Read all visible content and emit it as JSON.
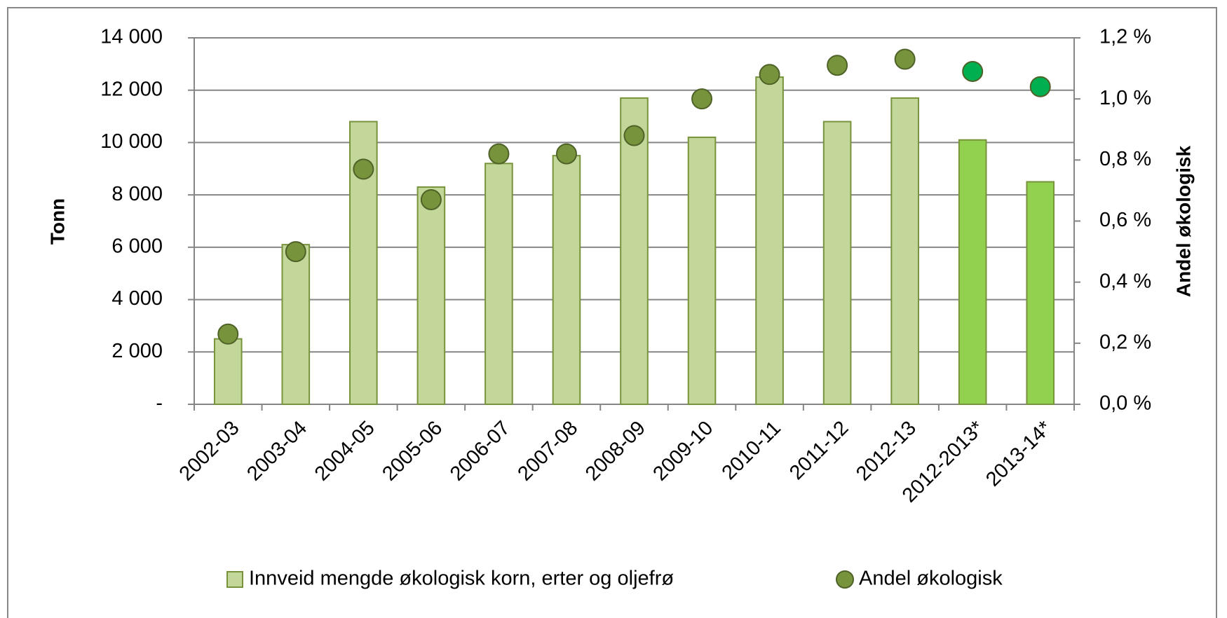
{
  "chart_data": {
    "type": "bar",
    "categories": [
      "2002-03",
      "2003-04",
      "2004-05",
      "2005-06",
      "2006-07",
      "2007-08",
      "2008-09",
      "2009-10",
      "2010-11",
      "2011-12",
      "2012-13",
      "2012-2013*",
      "2013-14*"
    ],
    "series": [
      {
        "name": "Innveid mengde økologisk korn, erter og oljefrø",
        "type": "bar",
        "color": "#c4d79b",
        "edge_color": "#77933c",
        "colors": [
          "#c4d79b",
          "#c4d79b",
          "#c4d79b",
          "#c4d79b",
          "#c4d79b",
          "#c4d79b",
          "#c4d79b",
          "#c4d79b",
          "#c4d79b",
          "#c4d79b",
          "#c4d79b",
          "#92d050",
          "#92d050"
        ],
        "values": [
          2500,
          6100,
          10800,
          8300,
          9200,
          9500,
          11700,
          10200,
          12500,
          10800,
          11700,
          10100,
          8500
        ]
      },
      {
        "name": "Andel økologisk",
        "type": "scatter",
        "axis": "y2",
        "color": "#77933c",
        "edge_color": "#4f6228",
        "colors": [
          "#77933c",
          "#77933c",
          "#77933c",
          "#77933c",
          "#77933c",
          "#77933c",
          "#77933c",
          "#77933c",
          "#77933c",
          "#77933c",
          "#77933c",
          "#00b050",
          "#00b050"
        ],
        "values": [
          0.23,
          0.5,
          0.77,
          0.67,
          0.82,
          0.82,
          0.88,
          1.0,
          1.08,
          1.11,
          1.13,
          1.09,
          1.04
        ]
      }
    ],
    "ylabel": "Tonn",
    "y2label": "Andel økologisk",
    "ylim": [
      0,
      14000
    ],
    "yticks": [
      {
        "value": 0,
        "label": "-"
      },
      {
        "value": 2000,
        "label": "2 000"
      },
      {
        "value": 4000,
        "label": "4 000"
      },
      {
        "value": 6000,
        "label": "6 000"
      },
      {
        "value": 8000,
        "label": "8 000"
      },
      {
        "value": 10000,
        "label": "10 000"
      },
      {
        "value": 12000,
        "label": "12 000"
      },
      {
        "value": 14000,
        "label": "14 000"
      }
    ],
    "y2lim": [
      0,
      1.2
    ],
    "y2ticks": [
      {
        "value": 0,
        "label": "0,0 %"
      },
      {
        "value": 0.2,
        "label": "0,2 %"
      },
      {
        "value": 0.4,
        "label": "0,4 %"
      },
      {
        "value": 0.6,
        "label": "0,6 %"
      },
      {
        "value": 0.8,
        "label": "0,8 %"
      },
      {
        "value": 1.0,
        "label": "1,0 %"
      },
      {
        "value": 1.2,
        "label": "1,2 %"
      }
    ],
    "grid": true,
    "legend": "bottom"
  }
}
